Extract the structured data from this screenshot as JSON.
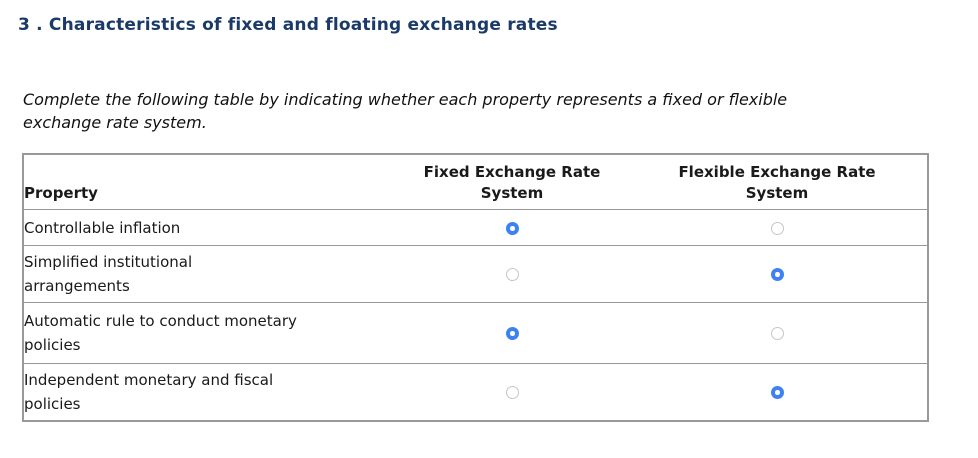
{
  "page": {
    "title": "3 . Characteristics of fixed and floating exchange rates",
    "instruction": [
      "Complete the following table by indicating whether each property represents a fixed or flexible",
      "exchange rate system."
    ]
  },
  "colors": {
    "title_text": "#1b3a68",
    "radio_selected": "#3d82f0",
    "radio_border": "#c6c6c6",
    "table_border": "#999999"
  },
  "table": {
    "headers": {
      "property": "Property",
      "fixed": [
        "Fixed Exchange Rate",
        "System"
      ],
      "flexible": [
        "Flexible Exchange Rate",
        "System"
      ]
    },
    "rows": [
      {
        "property": [
          "Controllable inflation"
        ],
        "selected": "fixed"
      },
      {
        "property": [
          "Simplified institutional",
          "arrangements"
        ],
        "selected": "flexible"
      },
      {
        "property": [
          "Automatic rule to conduct monetary",
          "policies"
        ],
        "selected": "fixed"
      },
      {
        "property": [
          "Independent monetary and fiscal",
          "policies"
        ],
        "selected": "flexible"
      }
    ]
  }
}
